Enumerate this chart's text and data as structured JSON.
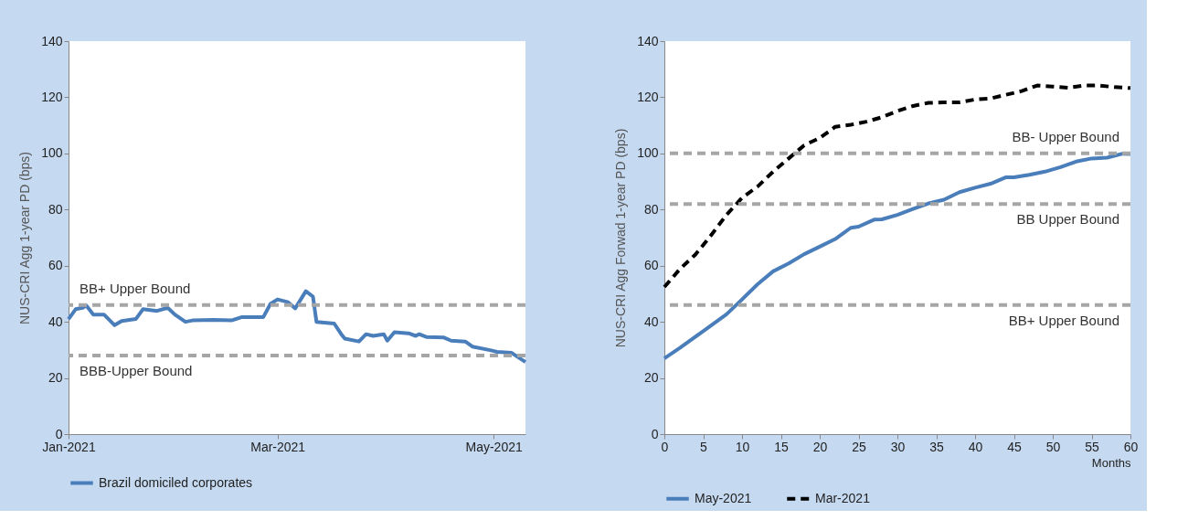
{
  "chart_data": [
    {
      "type": "line",
      "ylabel": "NUS-CRI Agg 1-year PD (bps)",
      "ylim": [
        0,
        140
      ],
      "yticks": [
        0,
        20,
        40,
        60,
        80,
        100,
        120,
        140
      ],
      "xlim": [
        "2021-01-01",
        "2021-05-10"
      ],
      "xticks": [
        {
          "value": "2021-01-01",
          "label": "Jan-2021"
        },
        {
          "value": "2021-03-01",
          "label": "Mar-2021"
        },
        {
          "value": "2021-05-01",
          "label": "May-2021"
        }
      ],
      "grid": false,
      "legend": "bottom",
      "marker": "none",
      "series": [
        {
          "name": "Brazil domiciled corporates",
          "color": "#4a7ebb",
          "line_style": "solid",
          "x": [
            "2021-01-01",
            "2021-01-03",
            "2021-01-05",
            "2021-01-06",
            "2021-01-08",
            "2021-01-11",
            "2021-01-14",
            "2021-01-16",
            "2021-01-20",
            "2021-01-22",
            "2021-01-26",
            "2021-01-29",
            "2021-01-31",
            "2021-02-03",
            "2021-02-05",
            "2021-02-11",
            "2021-02-16",
            "2021-02-19",
            "2021-02-25",
            "2021-02-27",
            "2021-03-01",
            "2021-03-04",
            "2021-03-06",
            "2021-03-09",
            "2021-03-11",
            "2021-03-12",
            "2021-03-17",
            "2021-03-19",
            "2021-03-20",
            "2021-03-24",
            "2021-03-26",
            "2021-03-28",
            "2021-03-31",
            "2021-04-01",
            "2021-04-03",
            "2021-04-07",
            "2021-04-09",
            "2021-04-10",
            "2021-04-12",
            "2021-04-17",
            "2021-04-19",
            "2021-04-23",
            "2021-04-25",
            "2021-04-30",
            "2021-05-02",
            "2021-05-06",
            "2021-05-10"
          ],
          "values": [
            41,
            44.5,
            45,
            45.8,
            42.6,
            42.6,
            38.8,
            40.3,
            41,
            44.5,
            43.9,
            45,
            42.6,
            40,
            40.5,
            40.7,
            40.5,
            41.7,
            41.7,
            46.4,
            48,
            47,
            44.8,
            50.9,
            49,
            40,
            39.4,
            35.6,
            34,
            33,
            35.6,
            35,
            35.6,
            33.3,
            36.3,
            35.9,
            35,
            35.6,
            34.6,
            34.4,
            33.3,
            33,
            31.2,
            29.9,
            29.3,
            29,
            25.7
          ]
        }
      ],
      "ref_lines": [
        {
          "axis": "y",
          "value": 46,
          "label": "BB+ Upper Bound",
          "color": "#a6a6a6",
          "line_style": "dashed"
        },
        {
          "axis": "y",
          "value": 28,
          "label": "BBB-Upper Bound",
          "color": "#a6a6a6",
          "line_style": "dashed"
        }
      ]
    },
    {
      "type": "line",
      "xlabel": "Months",
      "ylabel": "NUS-CRI Agg Forwad 1-year PD (bps)",
      "ylim": [
        0,
        140
      ],
      "yticks": [
        0,
        20,
        40,
        60,
        80,
        100,
        120,
        140
      ],
      "xlim": [
        0,
        60
      ],
      "xticks": [
        0,
        5,
        10,
        15,
        20,
        25,
        30,
        35,
        40,
        45,
        50,
        55,
        60
      ],
      "grid": false,
      "legend": "bottom",
      "marker": "none",
      "series": [
        {
          "name": "May-2021",
          "color": "#4a7ebb",
          "line_style": "solid",
          "x": [
            0,
            2,
            5,
            8,
            10,
            12,
            14,
            16,
            18,
            20,
            22,
            24,
            25,
            27,
            28,
            30,
            32,
            34,
            36,
            38,
            40,
            42,
            44,
            45,
            47,
            49,
            51,
            53,
            55,
            57,
            59,
            60
          ],
          "values": [
            27,
            30.7,
            36.7,
            42.7,
            48,
            53.4,
            58,
            60.8,
            64.1,
            66.8,
            69.5,
            73.5,
            73.9,
            76.4,
            76.5,
            78.1,
            80.2,
            82.2,
            83.5,
            86.2,
            87.8,
            89.2,
            91.5,
            91.5,
            92.4,
            93.5,
            95.1,
            97.1,
            98.2,
            98.5,
            99.9,
            99.8
          ]
        },
        {
          "name": "Mar-2021",
          "color": "#000000",
          "line_style": "dashed",
          "x": [
            0,
            2,
            4,
            6,
            8,
            10,
            12,
            14,
            16,
            18,
            20,
            22,
            24,
            26,
            28,
            30,
            32,
            34,
            36,
            38,
            40,
            42,
            44,
            46,
            48,
            50,
            52,
            54,
            56,
            58,
            60
          ],
          "values": [
            52.4,
            58.8,
            64,
            70.8,
            78.1,
            84.2,
            88.2,
            93.5,
            98.2,
            102.9,
            105.5,
            109.5,
            110.2,
            111.3,
            112.9,
            115.1,
            116.9,
            118,
            118.2,
            118.2,
            119.2,
            119.6,
            120.9,
            122.2,
            124.2,
            123.8,
            123.4,
            124.2,
            124.2,
            123.6,
            123.3
          ]
        }
      ],
      "ref_lines": [
        {
          "axis": "y",
          "value": 100,
          "label": "BB- Upper Bound",
          "color": "#a6a6a6",
          "line_style": "dashed"
        },
        {
          "axis": "y",
          "value": 82,
          "label": "BB Upper Bound",
          "color": "#a6a6a6",
          "line_style": "dashed"
        },
        {
          "axis": "y",
          "value": 46,
          "label": "BB+ Upper Bound",
          "color": "#a6a6a6",
          "line_style": "dashed"
        }
      ]
    }
  ]
}
